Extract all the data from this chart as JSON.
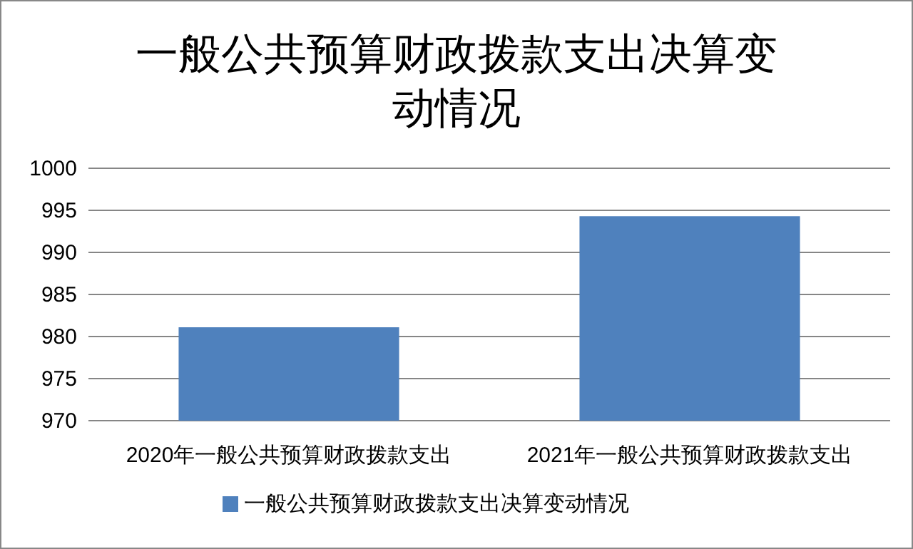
{
  "chart_data": {
    "type": "bar",
    "title": "一般公共预算财政拨款支出决算变动情况",
    "categories": [
      "2020年一般公共预算财政拨款支出",
      "2021年一般公共预算财政拨款支出"
    ],
    "series": [
      {
        "name": "一般公共预算财政拨款支出决算变动情况",
        "color": "#4f81bd",
        "values": [
          981.1,
          994.3
        ]
      }
    ],
    "ylim": [
      970,
      1000
    ],
    "yticks": [
      970,
      975,
      980,
      985,
      990,
      995,
      1000
    ],
    "grid": "y",
    "legend": "bottom"
  }
}
